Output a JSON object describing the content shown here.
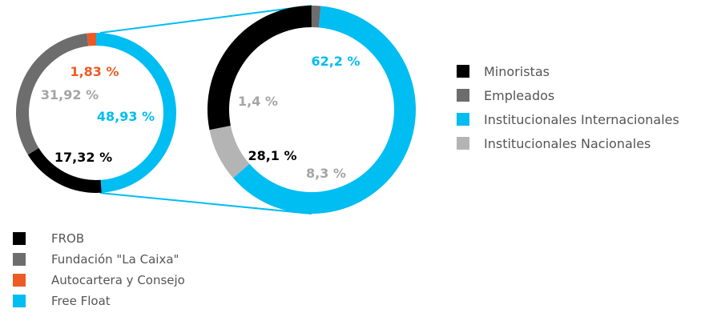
{
  "chart_data": [
    {
      "type": "pie",
      "variant": "donut",
      "categories": [
        "Free Float",
        "FROB",
        "Fundación \"La Caixa\"",
        "Autocartera y Consejo"
      ],
      "values": [
        48.93,
        17.32,
        31.92,
        1.83
      ],
      "data_labels": [
        "48,93 %",
        "17,32 %",
        "31,92 %",
        "1,83 %"
      ],
      "colors": [
        "#00bdf2",
        "#000000",
        "#6d6d6d",
        "#ee5a24"
      ],
      "label_colors": [
        "#00bdf2",
        "#000000",
        "#a5a5a5",
        "#ee5a24"
      ],
      "legend": [
        "FROB",
        "Fundación \"La Caixa\"",
        "Autocartera y Consejo",
        "Free Float"
      ],
      "legend_colors": [
        "#000000",
        "#6d6d6d",
        "#ee5a24",
        "#00bdf2"
      ],
      "legend_position": "bottom-left"
    },
    {
      "type": "pie",
      "variant": "donut",
      "breakdown_of": "Free Float",
      "categories": [
        "Institucionales Internacionales",
        "Institucionales Nacionales",
        "Minoristas",
        "Empleados"
      ],
      "values": [
        62.2,
        8.3,
        28.1,
        1.4
      ],
      "data_labels": [
        "62,2 %",
        "8,3 %",
        "28,1 %",
        "1,4 %"
      ],
      "colors": [
        "#00bdf2",
        "#b4b4b4",
        "#000000",
        "#6d6d6d"
      ],
      "label_colors": [
        "#00bdf2",
        "#a5a5a5",
        "#000000",
        "#a5a5a5"
      ],
      "legend": [
        "Minoristas",
        "Empleados",
        "Institucionales Internacionales",
        "Institucionales Nacionales"
      ],
      "legend_colors": [
        "#000000",
        "#6d6d6d",
        "#00bdf2",
        "#b4b4b4"
      ],
      "legend_position": "right"
    }
  ],
  "connector_color": "#00bdf2"
}
